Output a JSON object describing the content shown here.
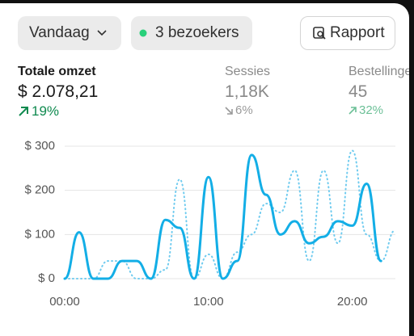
{
  "toolbar": {
    "date_filter": "Vandaag",
    "visitors": "3 bezoekers",
    "report_button": "Rapport"
  },
  "metrics": [
    {
      "label": "Totale omzet",
      "value": "$ 2.078,21",
      "change": "19%"
    },
    {
      "label": "Sessies",
      "value": "1,18K",
      "change": "6%"
    },
    {
      "label": "Bestellingen",
      "value": "45",
      "change": "32%"
    }
  ],
  "chart_data": {
    "type": "line",
    "x": [
      0,
      1,
      2,
      3,
      4,
      5,
      6,
      7,
      8,
      9,
      10,
      11,
      12,
      13,
      14,
      15,
      16,
      17,
      18,
      19,
      20,
      21,
      22,
      23
    ],
    "series": [
      {
        "color": "#13aee6",
        "style": "solid",
        "values": [
          0,
          105,
          0,
          0,
          40,
          40,
          0,
          133,
          115,
          0,
          230,
          0,
          40,
          280,
          190,
          100,
          130,
          80,
          95,
          130,
          120,
          215,
          40,
          null
        ]
      },
      {
        "color": "#6fcbef",
        "style": "dotted",
        "values": [
          0,
          0,
          0,
          40,
          40,
          0,
          0,
          20,
          225,
          0,
          55,
          0,
          60,
          100,
          170,
          150,
          245,
          40,
          245,
          80,
          290,
          100,
          40,
          110
        ]
      }
    ],
    "xlim": [
      0,
      23
    ],
    "xticks": [
      {
        "value": 0,
        "label": "00:00"
      },
      {
        "value": 10,
        "label": "10:00"
      },
      {
        "value": 20,
        "label": "20:00"
      }
    ],
    "ylim": [
      0,
      300
    ],
    "yticks": [
      {
        "value": 0,
        "label": "$ 0"
      },
      {
        "value": 100,
        "label": "$ 100"
      },
      {
        "value": 200,
        "label": "$ 200"
      },
      {
        "value": 300,
        "label": "$ 300"
      }
    ],
    "grid": true
  }
}
